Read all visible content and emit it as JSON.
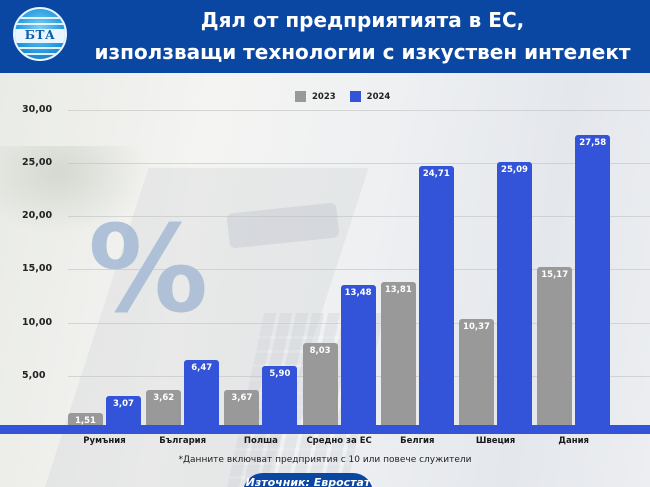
{
  "header": {
    "logo_text": "БТА",
    "title_line1": "Дял от предприятията в ЕС,",
    "title_line2": "използващи технологии с изкуствен интелект"
  },
  "chart": {
    "watermark": "%",
    "footnote": "*Данните включват предприятия с 10 или повече служители",
    "source": "Източник: Евростат"
  },
  "colors": {
    "header_bg": "#0a47a3",
    "series_2023": "#999999",
    "series_2024": "#3354d8"
  },
  "chart_data": {
    "type": "bar",
    "title": "Дял от предприятията в ЕС, използващи технологии с изкуствен интелект",
    "xlabel": "",
    "ylabel": "",
    "ylim": [
      0,
      30
    ],
    "yticks": [
      "5,00",
      "10,00",
      "15,00",
      "20,00",
      "25,00",
      "30,00"
    ],
    "grid": true,
    "legend_position": "top-center",
    "categories": [
      "Румъния",
      "България",
      "Полша",
      "Средно за ЕС",
      "Белгия",
      "Швеция",
      "Дания"
    ],
    "series": [
      {
        "name": "2023",
        "color": "#999999",
        "values": [
          1.51,
          3.62,
          3.67,
          8.03,
          13.81,
          10.37,
          15.17
        ],
        "labels": [
          "1,51",
          "3,62",
          "3,67",
          "8,03",
          "13,81",
          "10,37",
          "15,17"
        ]
      },
      {
        "name": "2024",
        "color": "#3354d8",
        "values": [
          3.07,
          6.47,
          5.9,
          13.48,
          24.71,
          25.09,
          27.58
        ],
        "labels": [
          "3,07",
          "6,47",
          "5,90",
          "13,48",
          "24,71",
          "25,09",
          "27,58"
        ]
      }
    ],
    "annotations": [
      "*Данните включват предприятия с 10 или повече служители",
      "Източник: Евростат"
    ]
  }
}
